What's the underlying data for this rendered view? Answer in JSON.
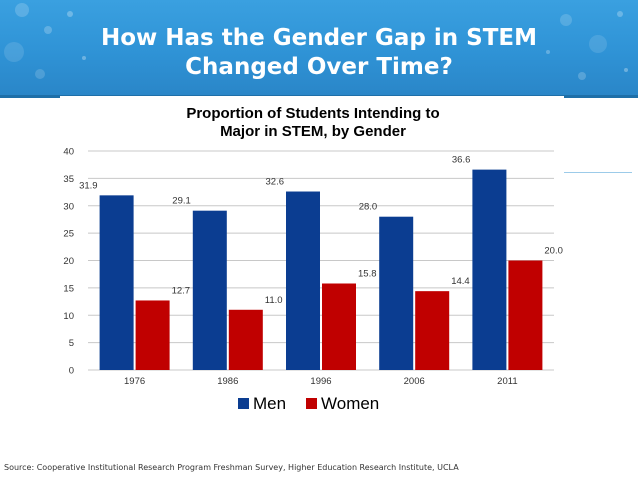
{
  "slide": {
    "title_line1": "How Has the Gender Gap in STEM",
    "title_line2": "Changed Over Time?",
    "source": "Source: Cooperative Institutional Research Program Freshman Survey, Higher Education Research Institute, UCLA"
  },
  "colors": {
    "banner": "#2f93d6",
    "men": "#0b3d91",
    "women": "#c00000"
  },
  "chart_data": {
    "type": "bar",
    "title": "Proportion of Students Intending to Major in STEM, by Gender",
    "title_lines": [
      "Proportion of Students Intending to",
      "Major in STEM, by Gender"
    ],
    "categories": [
      "1976",
      "1986",
      "1996",
      "2006",
      "2011"
    ],
    "series": [
      {
        "name": "Men",
        "values": [
          31.9,
          29.1,
          32.6,
          28.0,
          36.6
        ],
        "labels": [
          "31.9",
          "29.1",
          "32.6",
          "28.0",
          "36.6"
        ]
      },
      {
        "name": "Women",
        "values": [
          12.7,
          11.0,
          15.8,
          14.4,
          20.0
        ],
        "labels": [
          "12.7",
          "11.0",
          "15.8",
          "14.4",
          "20.0"
        ]
      }
    ],
    "ylim": [
      0,
      40
    ],
    "yticks": [
      "0",
      "5",
      "10",
      "15",
      "20",
      "25",
      "30",
      "35",
      "40"
    ],
    "xlabel": "",
    "ylabel": "",
    "grid": true,
    "legend": "bottom"
  }
}
